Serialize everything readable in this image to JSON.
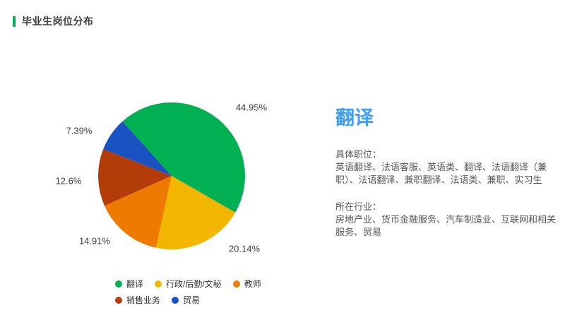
{
  "page": {
    "title": "毕业生岗位分布",
    "accent_color": "#00b052"
  },
  "chart_data": {
    "type": "pie",
    "title": "毕业生岗位分布",
    "start_angle": -42,
    "legend_position": "bottom-left",
    "legend_rows": [
      [
        0,
        1,
        2
      ],
      [
        3,
        4
      ]
    ],
    "series": [
      {
        "name": "翻译",
        "value": 44.95,
        "label": "44.95%",
        "color": "#00b052"
      },
      {
        "name": "行政/后勤/文秘",
        "value": 20.14,
        "label": "20.14%",
        "color": "#f2b600"
      },
      {
        "name": "教师",
        "value": 14.91,
        "label": "14.91%",
        "color": "#ee7b00"
      },
      {
        "name": "销售业务",
        "value": 12.6,
        "label": "12.6%",
        "color": "#b43c08"
      },
      {
        "name": "贸易",
        "value": 7.39,
        "label": "7.39%",
        "color": "#1a52c2"
      }
    ]
  },
  "detail": {
    "heading": "翻译",
    "heading_color": "#3e9cf5",
    "sections": [
      {
        "title": "具体职位：",
        "body": "英语翻译、法语客服、英语类、翻译、法语翻译（兼职）、法语翻译、兼职翻译、法语类、兼职、实习生"
      },
      {
        "title": "所在行业：",
        "body": "房地产业、货币金融服务、汽车制造业、互联网和相关服务、贸易"
      }
    ]
  }
}
